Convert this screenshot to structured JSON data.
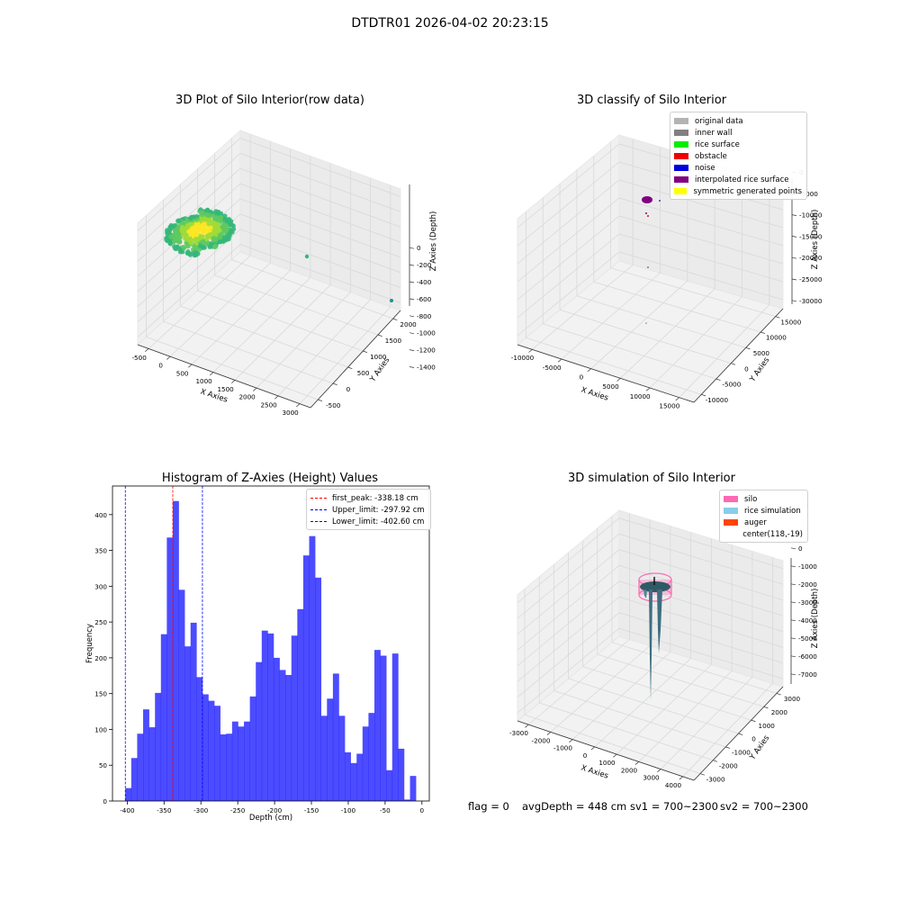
{
  "suptitle": "DTDTR01 2026-04-02 20:23:15",
  "status": {
    "flag": "flag = 0",
    "avgDepth": "avgDepth = 448 cm",
    "sv1": "sv1 = 700~2300",
    "sv2": "sv2 = 700~2300"
  },
  "chart_data": [
    {
      "type": "scatter",
      "subtype": "3d",
      "title": "3D Plot of Silo Interior(row data)",
      "xlabel": "X Axies",
      "ylabel": "Y Axies",
      "zlabel": "Z Axies (Depth)",
      "xticks": [
        "-500",
        "0",
        "500",
        "1000",
        "1500",
        "2000",
        "2500",
        "3000"
      ],
      "yticks": [
        "-500",
        "0",
        "500",
        "1000",
        "1500",
        "2000"
      ],
      "zticks": [
        "0",
        "-200",
        "-400",
        "-600",
        "-800",
        "-1000",
        "-1200",
        "-1400"
      ],
      "colormap": [
        "#5ec962",
        "#a0da39",
        "#fde725",
        "#35b779",
        "#21918c"
      ]
    },
    {
      "type": "scatter",
      "subtype": "3d",
      "title": "3D classify of Silo Interior",
      "xlabel": "X Axies",
      "ylabel": "Y Axies",
      "zlabel": "Z Axies (Depth)",
      "xticks": [
        "-10000",
        "-5000",
        "0",
        "5000",
        "10000",
        "15000"
      ],
      "yticks": [
        "-10000",
        "-5000",
        "0",
        "5000",
        "10000",
        "15000"
      ],
      "zticks": [
        "0",
        "-5000",
        "-10000",
        "-15000",
        "-20000",
        "-25000",
        "-30000"
      ],
      "legend": [
        {
          "label": "original data",
          "color": "#b3b3b3"
        },
        {
          "label": "inner wall",
          "color": "#808080"
        },
        {
          "label": "rice surface",
          "color": "#00ee00"
        },
        {
          "label": "obstacle",
          "color": "#ee0000"
        },
        {
          "label": "noise",
          "color": "#0000dd"
        },
        {
          "label": "interpolated rice surface",
          "color": "#800080"
        },
        {
          "label": "symmetric generated points",
          "color": "#ffff00"
        }
      ]
    },
    {
      "type": "bar",
      "subtype": "histogram",
      "title": "Histogram of Z-Axies (Height) Values",
      "xlabel": "Depth (cm)",
      "ylabel": "Frequency",
      "xlim": [
        -420,
        10
      ],
      "ylim": [
        0,
        440
      ],
      "xticks": [
        -400,
        -350,
        -300,
        -250,
        -200,
        -150,
        -100,
        -50,
        0
      ],
      "yticks": [
        0,
        50,
        100,
        150,
        200,
        250,
        300,
        350,
        400
      ],
      "bar_color": "#0000ff",
      "bin_edges_start": -402.6,
      "bin_width": 8.05,
      "values": [
        18,
        60,
        94,
        128,
        103,
        151,
        233,
        368,
        419,
        295,
        216,
        249,
        173,
        149,
        140,
        133,
        93,
        94,
        111,
        104,
        111,
        146,
        194,
        238,
        234,
        200,
        183,
        176,
        231,
        268,
        343,
        370,
        312,
        119,
        143,
        178,
        119,
        68,
        53,
        66,
        104,
        123,
        211,
        203,
        43,
        206,
        73,
        2,
        35
      ],
      "vlines": [
        {
          "label": "first_peak: -338.18 cm",
          "x": -338.18,
          "color": "#ff0000"
        },
        {
          "label": "Upper_limit: -297.92 cm",
          "x": -297.92,
          "color": "#0000ff"
        },
        {
          "label": "Lower_limit: -402.60 cm",
          "x": -402.6,
          "color": "#0000ff"
        }
      ],
      "legend_position": "upper right"
    },
    {
      "type": "scatter",
      "subtype": "3d-surface",
      "title": "3D simulation of Silo Interior",
      "xlabel": "X Axies",
      "ylabel": "Y Axies",
      "zlabel": "Z Axies (Depth)",
      "xticks": [
        "-3000",
        "-2000",
        "-1000",
        "0",
        "1000",
        "2000",
        "3000",
        "4000"
      ],
      "yticks": [
        "-3000",
        "-2000",
        "-1000",
        "0",
        "1000",
        "2000",
        "3000"
      ],
      "zticks": [
        "0",
        "-1000",
        "-2000",
        "-3000",
        "-4000",
        "-5000",
        "-6000",
        "-7000"
      ],
      "legend": [
        {
          "label": "silo",
          "color": "#ff69b4"
        },
        {
          "label": "rice simulation",
          "color": "#87ceeb"
        },
        {
          "label": "auger",
          "color": "#ff4500"
        },
        {
          "label": "center(118,-19)",
          "color": ""
        }
      ]
    }
  ]
}
